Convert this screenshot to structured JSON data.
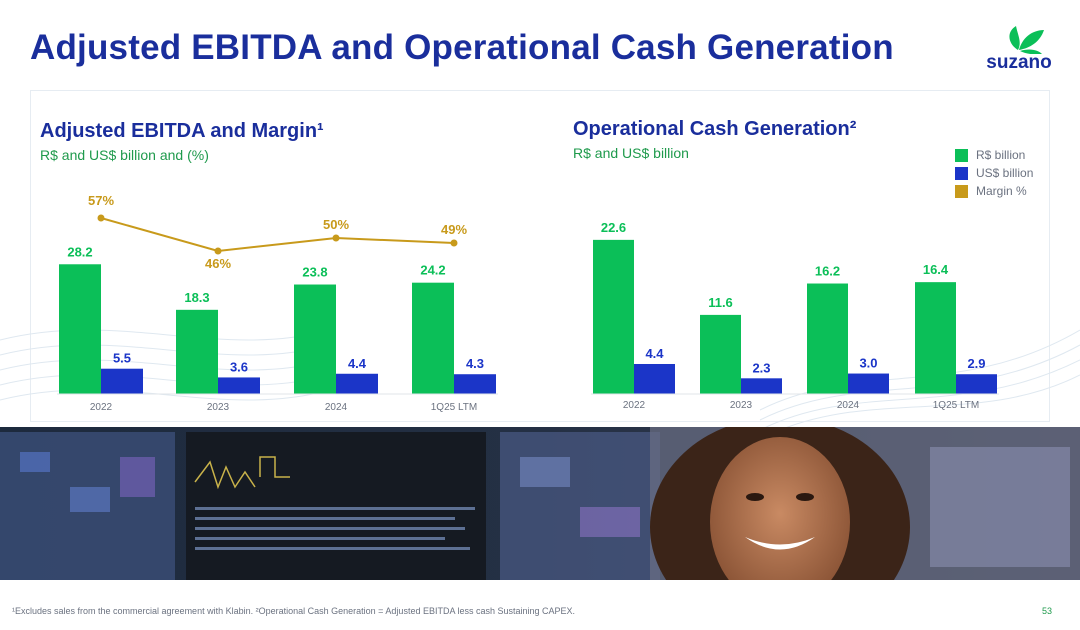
{
  "page": {
    "title": "Adjusted EBITDA and Operational Cash Generation",
    "logo_text": "suzano",
    "footnote": "¹Excludes sales from the commercial agreement with Klabin. ²Operational Cash Generation = Adjusted EBITDA less cash Sustaining CAPEX.",
    "page_number": "53"
  },
  "colors": {
    "title": "#1a2e9c",
    "green": "#0bbf58",
    "blue": "#1b35c8",
    "gold": "#c89a1b",
    "axis_text": "#6b7280"
  },
  "legend": {
    "items": [
      {
        "label": "R$ billion",
        "color": "#0bbf58"
      },
      {
        "label": "US$ billion",
        "color": "#1b35c8"
      },
      {
        "label": "Margin %",
        "color": "#c89a1b"
      }
    ]
  },
  "chart_data": [
    {
      "type": "bar",
      "title": "Adjusted EBITDA and Margin¹",
      "subtitle": "R$ and US$ billion and (%)",
      "categories": [
        "2022",
        "2023",
        "2024",
        "1Q25 LTM"
      ],
      "series": [
        {
          "name": "R$ billion",
          "values": [
            28.2,
            18.3,
            23.8,
            24.2
          ],
          "labels": [
            "28.2",
            "18.3",
            "23.8",
            "24.2"
          ]
        },
        {
          "name": "US$ billion",
          "values": [
            5.5,
            3.6,
            4.4,
            4.3
          ],
          "labels": [
            "5.5",
            "3.6",
            "4.4",
            "4.3"
          ]
        },
        {
          "name": "Margin %",
          "type": "line",
          "values": [
            57,
            46,
            50,
            49
          ],
          "labels": [
            "57%",
            "46%",
            "50%",
            "49%"
          ]
        }
      ],
      "ylim": [
        0,
        30
      ]
    },
    {
      "type": "bar",
      "title": "Operational Cash Generation²",
      "subtitle": "R$ and US$ billion",
      "categories": [
        "2022",
        "2023",
        "2024",
        "1Q25 LTM"
      ],
      "series": [
        {
          "name": "R$ billion",
          "values": [
            22.6,
            11.6,
            16.2,
            16.4
          ],
          "labels": [
            "22.6",
            "11.6",
            "16.2",
            "16.4"
          ]
        },
        {
          "name": "US$ billion",
          "values": [
            4.4,
            2.3,
            3.0,
            2.9
          ],
          "labels": [
            "4.4",
            "2.3",
            "3.0",
            "2.9"
          ]
        }
      ],
      "ylim": [
        0,
        24
      ]
    }
  ]
}
